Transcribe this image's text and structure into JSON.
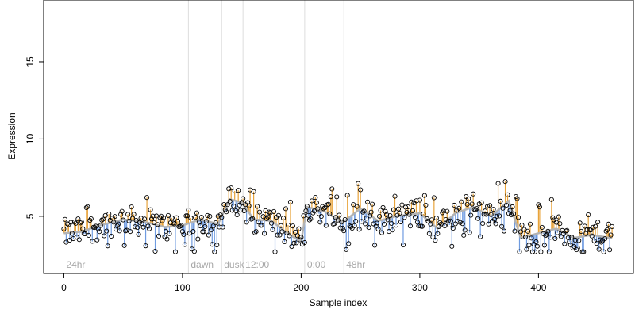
{
  "chart_data": {
    "type": "scatter",
    "xlabel": "Sample index",
    "ylabel": "Expression",
    "xlim": [
      -17,
      480
    ],
    "ylim": [
      1.3,
      19.0
    ],
    "xticks": [
      0,
      100,
      200,
      300,
      400
    ],
    "yticks": [
      5,
      10,
      15
    ],
    "grid": false,
    "colors": {
      "above_baseline": "#e8a33a",
      "below_baseline": "#6f9be0",
      "smooth": "#b3b3b3",
      "points": "#000000",
      "section_lines": "#dddddd",
      "section_labels": "#a8a8a8"
    },
    "sections": [
      {
        "label": "24hr",
        "start": 0,
        "end": 105
      },
      {
        "label": "dawn",
        "start": 105,
        "end": 133
      },
      {
        "label": "dusk",
        "start": 133,
        "end": 151
      },
      {
        "label": "12:00",
        "start": 151,
        "end": 203
      },
      {
        "label": "0:00",
        "start": 203,
        "end": 236
      },
      {
        "label": "48hr",
        "start": 236,
        "end": 463
      }
    ],
    "smooth_control": [
      [
        0,
        3.9
      ],
      [
        15,
        4.0
      ],
      [
        30,
        4.4
      ],
      [
        50,
        4.8
      ],
      [
        70,
        4.6
      ],
      [
        85,
        4.3
      ],
      [
        100,
        4.4
      ],
      [
        115,
        4.8
      ],
      [
        130,
        4.5
      ],
      [
        140,
        6.1
      ],
      [
        150,
        5.9
      ],
      [
        160,
        4.8
      ],
      [
        175,
        4.7
      ],
      [
        190,
        3.8
      ],
      [
        200,
        3.4
      ],
      [
        205,
        5.6
      ],
      [
        220,
        5.3
      ],
      [
        235,
        4.6
      ],
      [
        250,
        5.5
      ],
      [
        265,
        4.7
      ],
      [
        280,
        5.0
      ],
      [
        300,
        5.2
      ],
      [
        315,
        4.2
      ],
      [
        330,
        5.2
      ],
      [
        345,
        5.6
      ],
      [
        360,
        5.0
      ],
      [
        375,
        6.0
      ],
      [
        385,
        3.6
      ],
      [
        400,
        3.9
      ],
      [
        415,
        4.2
      ],
      [
        430,
        3.6
      ],
      [
        445,
        3.8
      ],
      [
        460,
        3.6
      ]
    ],
    "noise_amplitude": 0.9,
    "series_length": 463
  }
}
